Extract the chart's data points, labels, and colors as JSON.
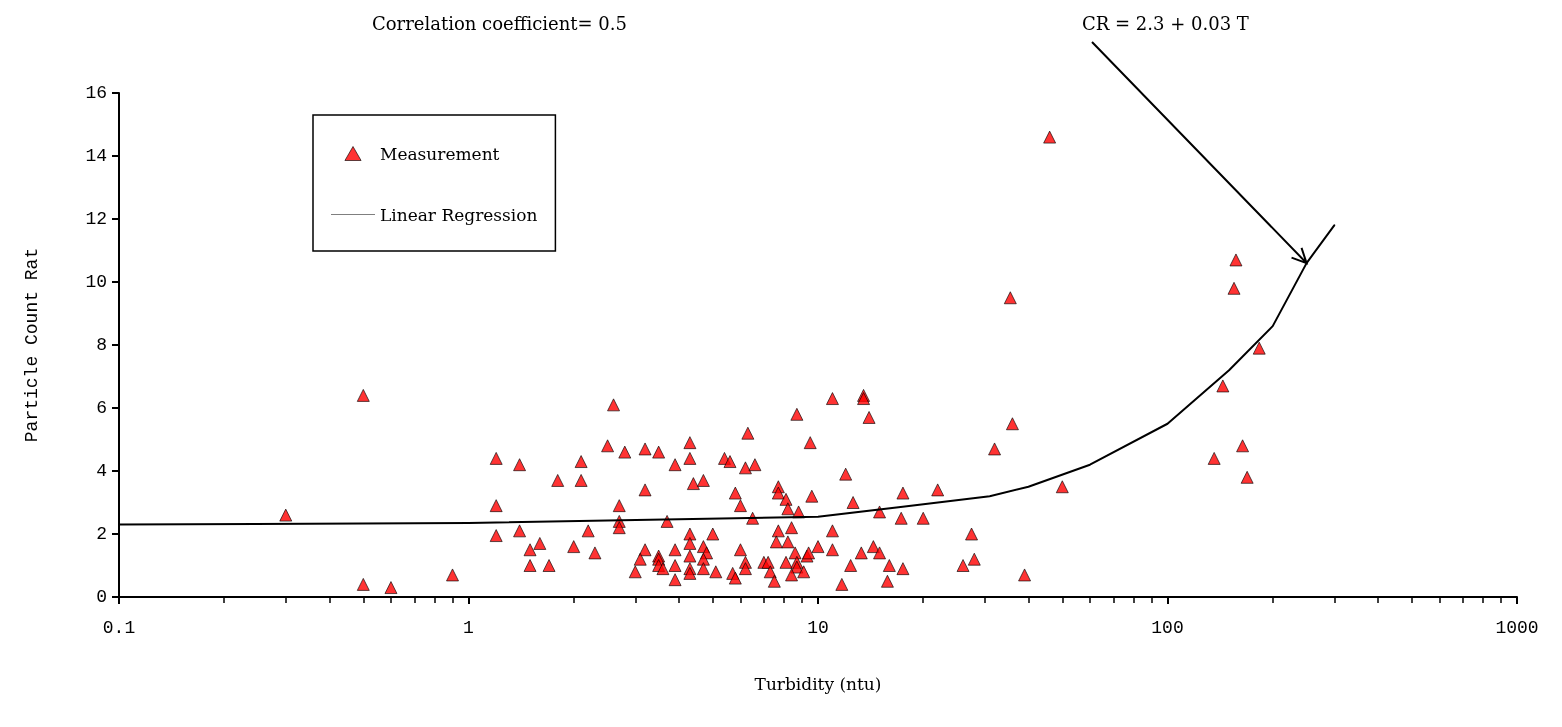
{
  "chart_data": {
    "type": "scatter",
    "xlabel": "Turbidity (ntu)",
    "ylabel": "Particle Count Rat",
    "annotations": [
      "Correlation coefficient= 0.5",
      {
        "text": "CR = 2.3 + 0.03 T",
        "x": 250,
        "y": 10.6
      }
    ],
    "log": "x",
    "xlim": [
      0.1,
      1000
    ],
    "xticks": [
      0.1,
      1,
      10,
      100,
      1000
    ],
    "ylim": [
      0,
      16
    ],
    "yticks": [
      0,
      2,
      4,
      6,
      8,
      10,
      12,
      14,
      16
    ],
    "grid": false,
    "legend": "top left",
    "marker": "triangle",
    "series": [
      {
        "name": "Measurement",
        "color": "#ff0000",
        "x": [
          0.3,
          0.5,
          0.5,
          0.6,
          0.9,
          1.2,
          1.2,
          1.2,
          1.4,
          1.4,
          1.5,
          1.6,
          1.5,
          1.7,
          1.8,
          2.1,
          2.1,
          2.0,
          2.2,
          2.3,
          2.6,
          2.5,
          2.8,
          3.2,
          3.5,
          2.7,
          2.7,
          2.7,
          3.2,
          3.7,
          3.9,
          4.3,
          4.3,
          4.4,
          3.2,
          3.1,
          3.0,
          3.5,
          3.5,
          3.5,
          3.6,
          3.9,
          3.9,
          3.9,
          4.3,
          4.3,
          4.3,
          4.3,
          4.3,
          4.7,
          5.0,
          4.7,
          4.8,
          4.7,
          4.7,
          5.1,
          5.4,
          5.6,
          6.3,
          6.2,
          6.6,
          5.8,
          6.0,
          6.5,
          6.0,
          6.2,
          6.2,
          5.7,
          5.8,
          7.0,
          7.2,
          7.3,
          7.5,
          7.7,
          7.7,
          8.1,
          8.2,
          8.8,
          8.4,
          7.7,
          7.6,
          8.2,
          8.6,
          9.3,
          9.4,
          8.1,
          8.7,
          8.7,
          8.4,
          9.1,
          8.7,
          9.5,
          9.6,
          10,
          11,
          11,
          11,
          11.7,
          12,
          13.5,
          13.5,
          14,
          12.6,
          12.4,
          13.3,
          14.4,
          15,
          15,
          16,
          15.8,
          17.5,
          17.5,
          17.3,
          20,
          22,
          26,
          27.5,
          28,
          39,
          32,
          36,
          35.5,
          46,
          50,
          136,
          144,
          164,
          169,
          183,
          155,
          157
        ],
        "values": [
          2.6,
          6.4,
          0.4,
          0.3,
          0.7,
          4.4,
          2.9,
          1.95,
          4.2,
          2.1,
          1.5,
          1.7,
          1.0,
          1.0,
          3.7,
          4.3,
          3.7,
          1.6,
          2.1,
          1.4,
          6.1,
          4.8,
          4.6,
          4.7,
          4.6,
          2.9,
          2.4,
          2.2,
          3.4,
          2.4,
          4.2,
          4.9,
          4.4,
          3.6,
          1.5,
          1.2,
          0.8,
          1.3,
          1.2,
          1.0,
          0.9,
          1.5,
          1.0,
          0.55,
          2.0,
          1.7,
          1.3,
          0.9,
          0.75,
          3.7,
          2.0,
          1.6,
          1.4,
          1.2,
          0.9,
          0.8,
          4.4,
          4.3,
          5.2,
          4.1,
          4.2,
          3.3,
          2.9,
          2.5,
          1.5,
          1.1,
          0.9,
          0.75,
          0.6,
          1.1,
          1.1,
          0.8,
          0.5,
          3.5,
          3.3,
          3.1,
          2.8,
          2.7,
          2.2,
          2.1,
          1.75,
          1.75,
          1.4,
          1.3,
          1.4,
          1.1,
          1.1,
          0.95,
          0.7,
          0.8,
          5.8,
          4.9,
          3.2,
          1.6,
          6.3,
          2.1,
          1.5,
          0.4,
          3.9,
          6.4,
          6.3,
          5.7,
          3.0,
          1.0,
          1.4,
          1.6,
          1.4,
          2.7,
          1.0,
          0.5,
          0.9,
          3.3,
          2.5,
          2.5,
          3.4,
          1.0,
          2.0,
          1.2,
          0.7,
          4.7,
          5.5,
          9.5,
          14.6,
          3.5,
          4.4,
          6.7,
          4.8,
          3.8,
          7.9,
          9.8,
          10.7
        ]
      },
      {
        "name": "Linear Regression",
        "type": "line",
        "color": "#000000",
        "line_style": "solid",
        "marker": "none",
        "x": [
          0.1,
          1,
          10,
          17,
          31,
          40,
          60,
          100,
          150,
          200,
          250,
          300
        ],
        "values": [
          2.3,
          2.35,
          2.55,
          2.85,
          3.2,
          3.5,
          4.2,
          5.5,
          7.2,
          8.6,
          10.6,
          11.8
        ]
      }
    ]
  }
}
